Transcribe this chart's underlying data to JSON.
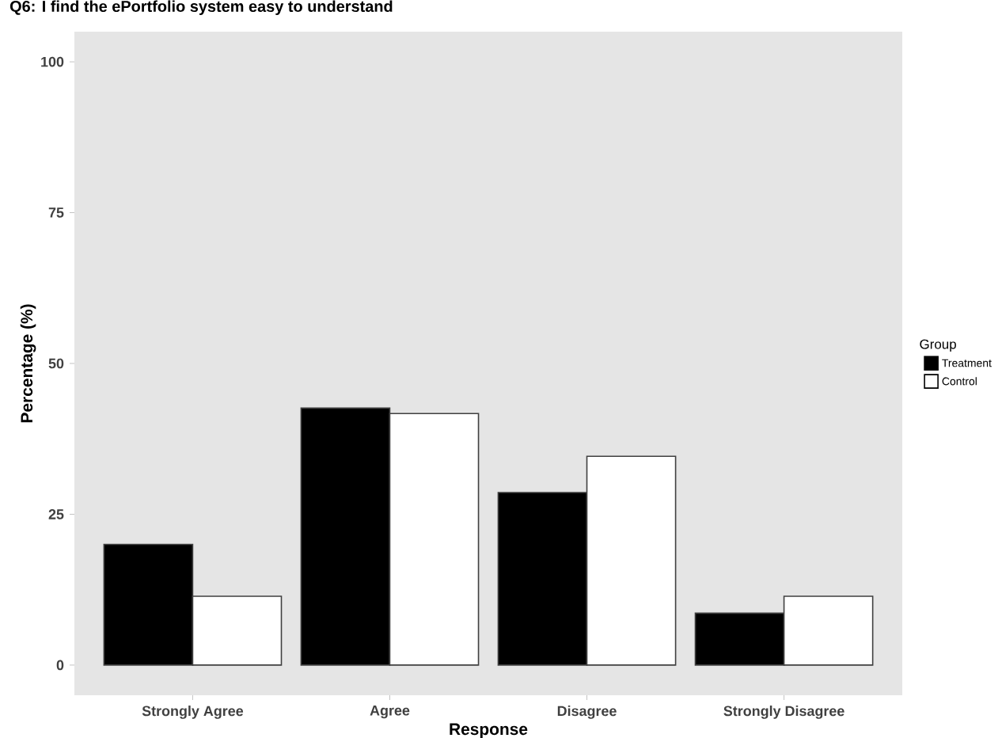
{
  "chart_data": {
    "type": "bar",
    "title": "Q6: I find the ePortfolio system easy to understand",
    "xlabel": "Response",
    "ylabel": "Percentage (%)",
    "legend_title": "Group",
    "categories": [
      "Strongly Agree",
      "Agree",
      "Disagree",
      "Strongly Disagree"
    ],
    "series": [
      {
        "name": "Treatment",
        "color": "#000000",
        "values": [
          20,
          42.6,
          28.6,
          8.6
        ]
      },
      {
        "name": "Control",
        "color": "#ffffff",
        "values": [
          11.4,
          41.7,
          34.6,
          11.4
        ]
      }
    ],
    "ylim": [
      -5,
      105
    ],
    "yticks": [
      0,
      25,
      50,
      75,
      100
    ],
    "grid": false,
    "legend": "right"
  }
}
